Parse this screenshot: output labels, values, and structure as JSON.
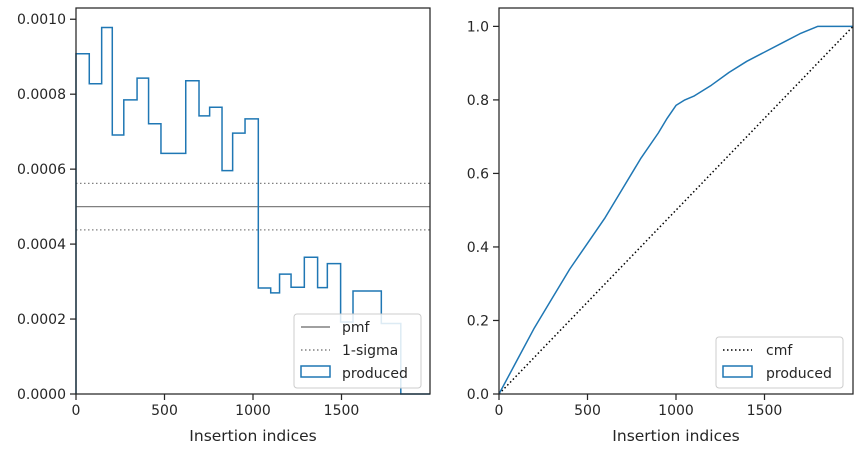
{
  "chart_data": [
    {
      "type": "histogram-step",
      "xlabel": "Insertion indices",
      "ylabel": "",
      "xlim": [
        0,
        2000
      ],
      "ylim": [
        0,
        0.00103
      ],
      "xticks": [
        0,
        500,
        1000,
        1500
      ],
      "xtick_labels": [
        "0",
        "500",
        "1000",
        "1500"
      ],
      "yticks": [
        0,
        0.0002,
        0.0004,
        0.0006,
        0.0008,
        0.001
      ],
      "ytick_labels": [
        "0.0000",
        "0.0002",
        "0.0004",
        "0.0006",
        "0.0008",
        "0.0010"
      ],
      "bin_edges": [
        0,
        75,
        145,
        205,
        270,
        345,
        410,
        480,
        620,
        695,
        755,
        825,
        885,
        955,
        1030,
        1100,
        1150,
        1215,
        1290,
        1365,
        1420,
        1495,
        1565,
        1725,
        1835,
        2000
      ],
      "series": [
        {
          "name": "produced",
          "color": "#1f77b4",
          "values": [
            0.000908,
            0.000828,
            0.000978,
            0.000691,
            0.000785,
            0.000843,
            0.000721,
            0.000642,
            0.000836,
            0.000742,
            0.000765,
            0.000596,
            0.000696,
            0.000734,
            0.000283,
            0.00027,
            0.00032,
            0.000285,
            0.000365,
            0.000284,
            0.000348,
            0.000192,
            0.000275,
            0.000188,
            0.0
          ]
        }
      ],
      "hlines": [
        {
          "name": "pmf",
          "y": 0.0005,
          "color": "#808080",
          "style": "solid"
        },
        {
          "name": "1-sigma",
          "y": 0.000562,
          "color": "#808080",
          "style": "dotted"
        },
        {
          "name": "1-sigma-lower",
          "y": 0.000438,
          "color": "#808080",
          "style": "dotted"
        }
      ],
      "legend": {
        "position": "lower-right",
        "entries": [
          {
            "label": "pmf",
            "kind": "line-solid",
            "color": "#808080"
          },
          {
            "label": "1-sigma",
            "kind": "line-dotted",
            "color": "#808080"
          },
          {
            "label": "produced",
            "kind": "patch",
            "color": "#1f77b4"
          }
        ]
      }
    },
    {
      "type": "line",
      "xlabel": "Insertion indices",
      "ylabel": "",
      "xlim": [
        0,
        2000
      ],
      "ylim": [
        0,
        1.05
      ],
      "xticks": [
        0,
        500,
        1000,
        1500
      ],
      "xtick_labels": [
        "0",
        "500",
        "1000",
        "1500"
      ],
      "yticks": [
        0,
        0.2,
        0.4,
        0.6,
        0.8,
        1.0
      ],
      "ytick_labels": [
        "0.0",
        "0.2",
        "0.4",
        "0.6",
        "0.8",
        "1.0"
      ],
      "series": [
        {
          "name": "produced",
          "color": "#1f77b4",
          "style": "solid",
          "x": [
            0,
            100,
            200,
            300,
            400,
            500,
            600,
            700,
            800,
            900,
            950,
            1000,
            1050,
            1100,
            1200,
            1300,
            1400,
            1500,
            1600,
            1700,
            1800,
            2000
          ],
          "y": [
            0,
            0.09,
            0.18,
            0.26,
            0.34,
            0.41,
            0.48,
            0.56,
            0.64,
            0.71,
            0.75,
            0.785,
            0.8,
            0.81,
            0.84,
            0.875,
            0.905,
            0.93,
            0.955,
            0.98,
            1.0,
            1.0
          ]
        },
        {
          "name": "cmf",
          "color": "#000000",
          "style": "dotted",
          "x": [
            0,
            2000
          ],
          "y": [
            0,
            1.0
          ]
        }
      ],
      "legend": {
        "position": "lower-right",
        "entries": [
          {
            "label": "cmf",
            "kind": "line-dotted",
            "color": "#000000"
          },
          {
            "label": "produced",
            "kind": "patch",
            "color": "#1f77b4"
          }
        ]
      }
    }
  ]
}
